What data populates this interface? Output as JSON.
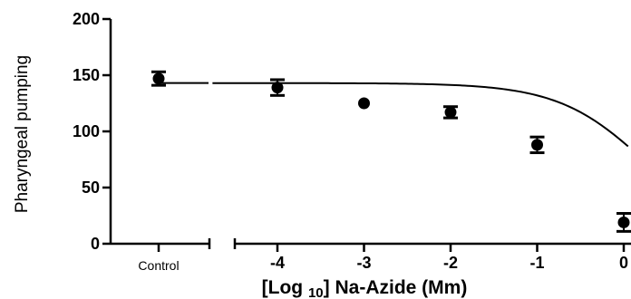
{
  "chart_data": {
    "type": "scatter",
    "ylabel": "Pharyngeal pumping",
    "xlabel_parts": {
      "prefix": "[Log ",
      "subscript": "10",
      "suffix": "] Na-Azide (Mm)"
    },
    "ylim": [
      0,
      200
    ],
    "yticks": [
      0,
      50,
      100,
      150,
      200
    ],
    "xlim": [
      -4.8,
      0.05
    ],
    "xticks": [
      -4,
      -3,
      -2,
      -1,
      0
    ],
    "xtick_labels": [
      "-4",
      "-3",
      "-2",
      "-1",
      "0"
    ],
    "control": {
      "label": "Control",
      "y": 147,
      "err": 6
    },
    "points": [
      {
        "x": -4,
        "y": 139,
        "err": 7
      },
      {
        "x": -3,
        "y": 125,
        "err": 0
      },
      {
        "x": -2,
        "y": 117,
        "err": 5
      },
      {
        "x": -1,
        "y": 88,
        "err": 7
      },
      {
        "x": 0,
        "y": 19,
        "err": 8
      }
    ],
    "fit_curve": {
      "type": "sigmoidal",
      "top": 143,
      "bottom": 0,
      "log_ec50": 0.27,
      "hill_slope": 0.85
    },
    "grid": false,
    "legend": "none"
  }
}
